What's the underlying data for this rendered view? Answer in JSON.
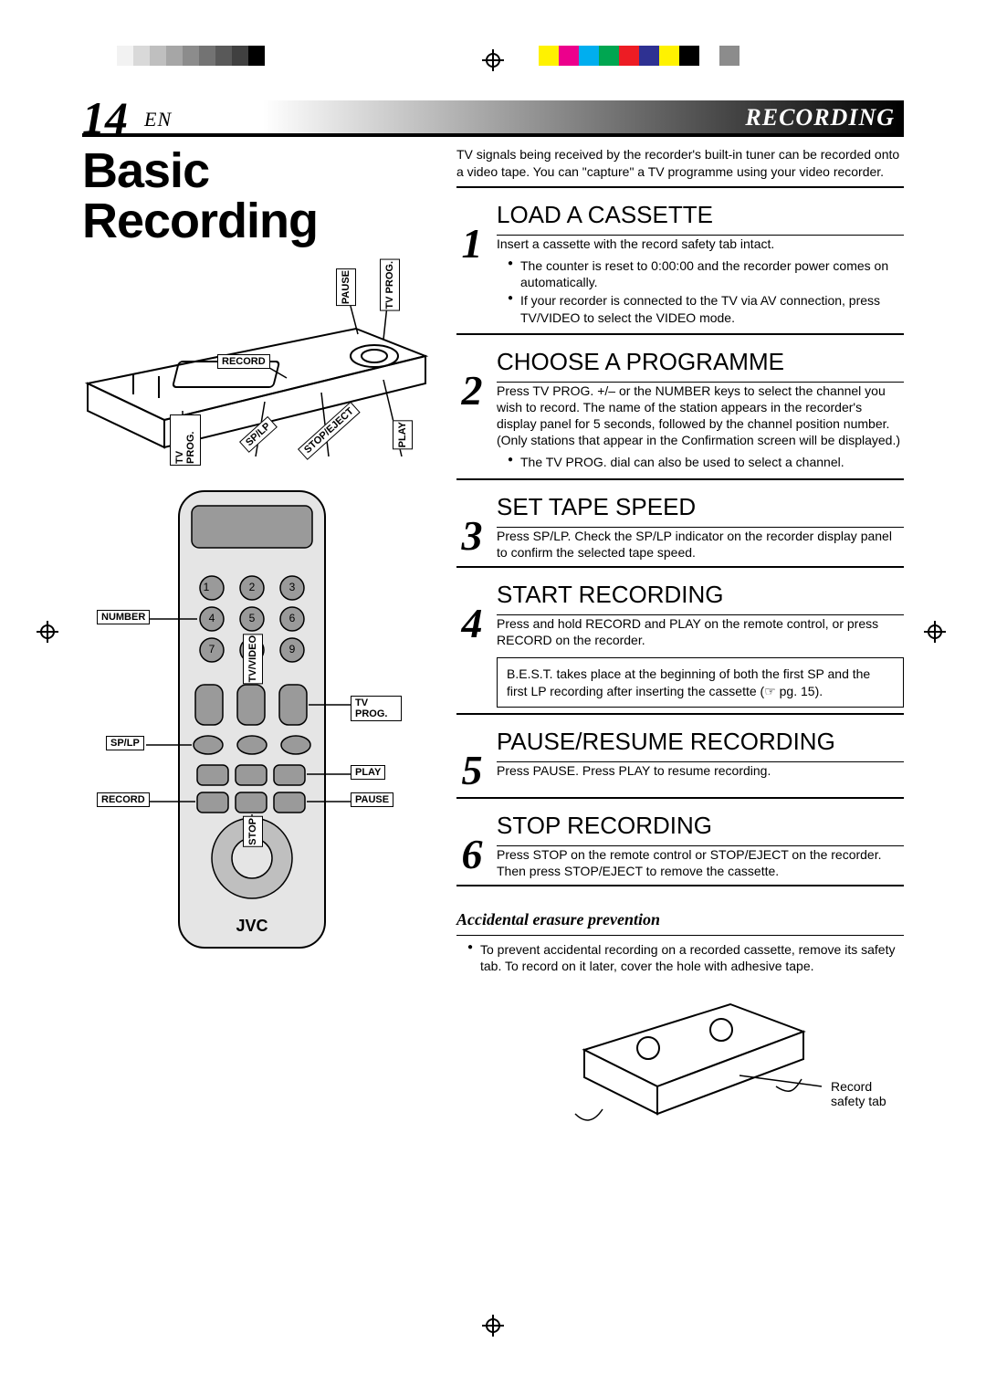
{
  "registration": {
    "grayscale_left_colors": [
      "#ffffff",
      "#f2f2f2",
      "#d9d9d9",
      "#bfbfbf",
      "#a6a6a6",
      "#8c8c8c",
      "#737373",
      "#595959",
      "#404040",
      "#000000"
    ],
    "cmyk_right_colors": [
      "#fff200",
      "#ec008c",
      "#00aeef",
      "#00a651",
      "#ed1c24",
      "#2e3192",
      "#fff200",
      "#000000",
      "#ffffff",
      "#8c8c8c"
    ]
  },
  "header": {
    "page_number": "14",
    "page_lang": "EN",
    "section": "RECORDING",
    "gradient_from": "#ffffff",
    "gradient_to": "#000000"
  },
  "title": "Basic Recording",
  "intro": "TV signals being received by the recorder's built-in tuner can be recorded onto a video tape. You can \"capture\" a TV programme using your video recorder.",
  "steps": [
    {
      "n": "1",
      "h": "LOAD A CASSETTE",
      "p": "Insert a cassette with the record safety tab intact.",
      "bullets": [
        "The counter is reset to 0:00:00 and the recorder power comes on automatically.",
        "If your recorder is connected to the TV via AV connection, press TV/VIDEO to select the VIDEO mode."
      ]
    },
    {
      "n": "2",
      "h": "CHOOSE A PROGRAMME",
      "p": "Press TV PROG. +/– or the NUMBER keys to select the channel you wish to record. The name of the station appears in the recorder's display panel for 5 seconds, followed by the channel position number. (Only stations that appear in the Confirmation screen will be displayed.)",
      "bullets": [
        "The TV PROG. dial can also be used to select a channel."
      ]
    },
    {
      "n": "3",
      "h": "SET TAPE SPEED",
      "p": "Press SP/LP. Check the SP/LP indicator on the recorder display panel to confirm the selected tape speed."
    },
    {
      "n": "4",
      "h": "START RECORDING",
      "p": "Press and hold RECORD and PLAY on the remote control, or press RECORD on the recorder.",
      "box": "B.E.S.T. takes place at the beginning of both the first SP and the first LP recording after inserting the cassette (☞ pg. 15)."
    },
    {
      "n": "5",
      "h": "PAUSE/RESUME RECORDING",
      "p": "Press PAUSE. Press PLAY to resume recording."
    },
    {
      "n": "6",
      "h": "STOP RECORDING",
      "p": "Press STOP on the remote control or STOP/EJECT on the recorder. Then press STOP/EJECT to remove the cassette."
    }
  ],
  "erasure": {
    "heading": "Accidental erasure prevention",
    "bullet": "To prevent accidental recording on a recorded cassette, remove its safety tab. To record on it later, cover the hole with adhesive tape.",
    "callout": "Record safety tab"
  },
  "vcr_labels": {
    "pause": "PAUSE",
    "tvprog_top": "TV PROG.",
    "record": "RECORD",
    "tvprog_bot": "TV PROG.",
    "splp": "SP/LP",
    "stopeject": "STOP/EJECT",
    "play": "PLAY"
  },
  "remote_labels": {
    "number": "NUMBER",
    "tvvideo": "TV/VIDEO",
    "tvprog": "TV PROG.",
    "splp": "SP/LP",
    "play": "PLAY",
    "pause": "PAUSE",
    "record": "RECORD",
    "stop": "STOP",
    "brand": "JVC"
  },
  "typography": {
    "body_fontsize_pt": 10,
    "title_fontsize_pt": 40,
    "step_heading_fontsize_pt": 19,
    "step_number_fontsize_pt": 34,
    "step_number_font": "serif-italic-bold"
  },
  "colors": {
    "text": "#000000",
    "background": "#ffffff",
    "rule": "#000000"
  }
}
